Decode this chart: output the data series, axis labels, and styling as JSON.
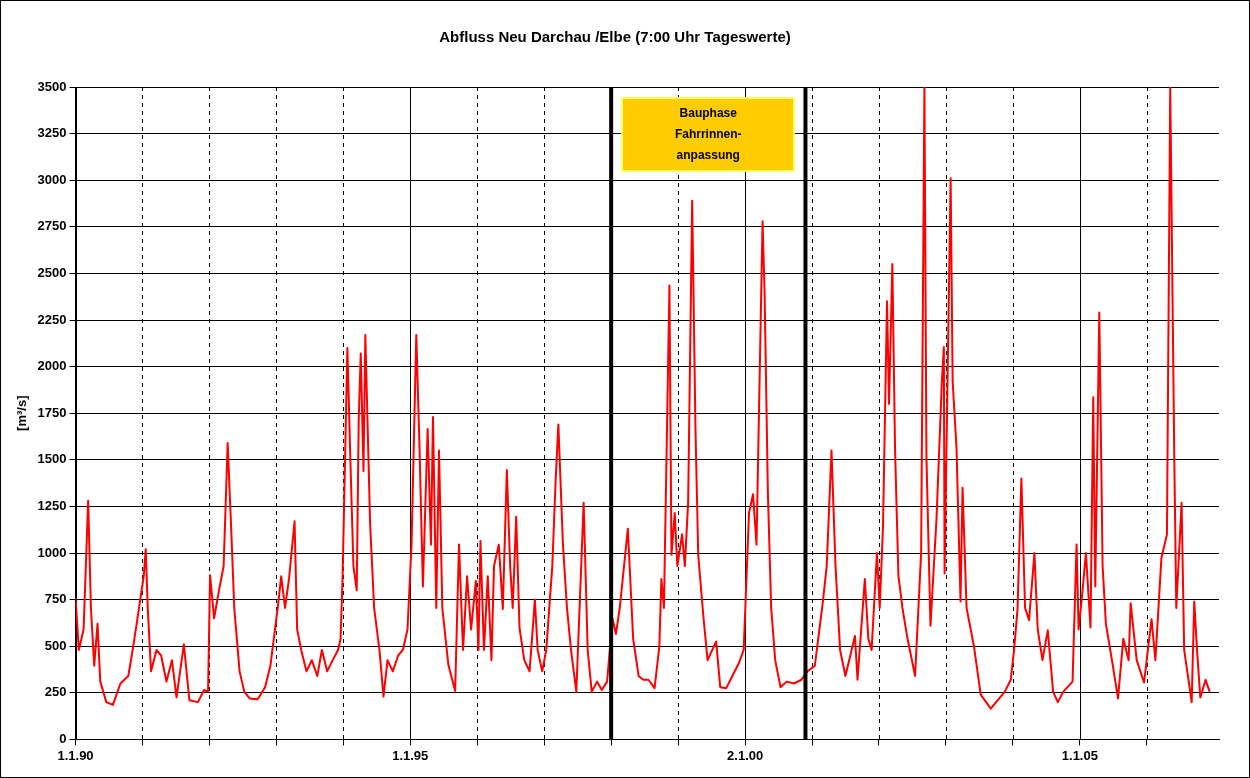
{
  "chart_data": {
    "type": "line",
    "title": "Abfluss Neu Darchau /Elbe (7:00 Uhr Tageswerte)",
    "ylabel": "[m³/s]",
    "x": [
      "1990-01-01",
      "1990-01-19",
      "1990-02-14",
      "1990-03-11",
      "1990-03-26",
      "1990-04-13",
      "1990-05-01",
      "1990-05-16",
      "1990-06-18",
      "1990-07-24",
      "1990-09-03",
      "1990-10-16",
      "1990-11-07",
      "1990-11-26",
      "1991-01-08",
      "1991-01-19",
      "1991-01-30",
      "1991-02-17",
      "1991-03-19",
      "1991-04-13",
      "1991-05-12",
      "1991-06-11",
      "1991-07-06",
      "1991-08-15",
      "1991-09-14",
      "1991-10-31",
      "1991-12-03",
      "1991-12-25",
      "1992-01-05",
      "1992-01-27",
      "1992-02-21",
      "1992-03-19",
      "1992-04-10",
      "1992-04-28",
      "1992-05-16",
      "1992-06-14",
      "1992-07-10",
      "1992-08-08",
      "1992-09-21",
      "1992-10-31",
      "1992-11-29",
      "1993-01-08",
      "1993-01-27",
      "1993-02-17",
      "1993-03-11",
      "1993-04-10",
      "1993-04-24",
      "1993-05-16",
      "1993-06-14",
      "1993-07-13",
      "1993-08-12",
      "1993-09-06",
      "1993-10-05",
      "1993-11-04",
      "1993-12-03",
      "1993-12-17",
      "1993-12-28",
      "1994-01-23",
      "1994-02-07",
      "1994-02-25",
      "1994-03-15",
      "1994-03-26",
      "1994-04-06",
      "1994-04-21",
      "1994-05-01",
      "1994-05-27",
      "1994-06-18",
      "1994-07-17",
      "1994-08-08",
      "1994-08-30",
      "1994-09-28",
      "1994-10-27",
      "1994-11-22",
      "1994-12-17",
      "1995-01-08",
      "1995-02-03",
      "1995-02-21",
      "1995-03-11",
      "1995-04-06",
      "1995-04-24",
      "1995-05-05",
      "1995-05-23",
      "1995-06-07",
      "1995-06-25",
      "1995-07-28",
      "1995-09-03",
      "1995-09-24",
      "1995-10-16",
      "1995-11-07",
      "1995-11-29",
      "1995-12-25",
      "1996-01-08",
      "1996-01-19",
      "1996-02-07",
      "1996-02-28",
      "1996-03-19",
      "1996-04-02",
      "1996-04-28",
      "1996-05-20",
      "1996-06-11",
      "1996-06-29",
      "1996-07-13",
      "1996-08-01",
      "1996-08-19",
      "1996-09-14",
      "1996-10-13",
      "1996-11-11",
      "1996-11-26",
      "1996-12-21",
      "1997-01-12",
      "1997-02-14",
      "1997-03-04",
      "1997-03-19",
      "1997-04-13",
      "1997-05-05",
      "1997-05-27",
      "1997-06-25",
      "1997-08-04",
      "1997-08-26",
      "1997-09-17",
      "1997-10-16",
      "1997-11-11",
      "1997-12-10",
      "1998-01-08",
      "1998-01-27",
      "1998-02-17",
      "1998-04-02",
      "1998-05-01",
      "1998-05-31",
      "1998-06-25",
      "1998-07-24",
      "1998-08-26",
      "1998-09-21",
      "1998-10-02",
      "1998-10-16",
      "1998-11-15",
      "1998-11-26",
      "1998-12-14",
      "1998-12-28",
      "1999-01-23",
      "1999-02-07",
      "1999-02-25",
      "1999-03-19",
      "1999-04-06",
      "1999-04-21",
      "1999-05-20",
      "1999-06-11",
      "1999-07-28",
      "1999-08-19",
      "1999-09-21",
      "1999-10-24",
      "1999-11-29",
      "1999-12-25",
      "2000-01-23",
      "2000-02-14",
      "2000-03-04",
      "2000-04-06",
      "2000-04-17",
      "2000-05-05",
      "2000-05-23",
      "2000-06-14",
      "2000-07-13",
      "2000-08-15",
      "2000-09-24",
      "2000-11-04",
      "2000-12-06",
      "2001-01-16",
      "2001-02-28",
      "2001-03-22",
      "2001-04-17",
      "2001-05-09",
      "2001-06-03",
      "2001-07-02",
      "2001-08-23",
      "2001-09-06",
      "2001-10-16",
      "2001-11-04",
      "2001-11-22",
      "2001-12-21",
      "2002-01-05",
      "2002-01-23",
      "2002-02-14",
      "2002-02-25",
      "2002-03-15",
      "2002-03-30",
      "2002-04-17",
      "2002-05-09",
      "2002-06-03",
      "2002-07-17",
      "2002-08-19",
      "2002-09-06",
      "2002-09-17",
      "2002-10-09",
      "2002-11-11",
      "2002-12-10",
      "2002-12-21",
      "2002-12-25",
      "2003-01-27",
      "2003-02-07",
      "2003-02-28",
      "2003-03-22",
      "2003-04-02",
      "2003-04-24",
      "2003-06-03",
      "2003-07-10",
      "2003-09-03",
      "2003-10-02",
      "2003-11-18",
      "2003-12-21",
      "2004-01-08",
      "2004-01-27",
      "2004-02-17",
      "2004-03-08",
      "2004-03-30",
      "2004-04-28",
      "2004-05-16",
      "2004-06-11",
      "2004-07-10",
      "2004-08-08",
      "2004-09-03",
      "2004-10-02",
      "2004-11-22",
      "2004-12-14",
      "2004-12-25",
      "2005-01-12",
      "2005-02-03",
      "2005-02-28",
      "2005-03-15",
      "2005-03-26",
      "2005-04-17",
      "2005-05-05",
      "2005-05-23",
      "2005-06-25",
      "2005-07-28",
      "2005-08-26",
      "2005-09-24",
      "2005-10-05",
      "2005-11-07",
      "2005-12-17",
      "2006-01-27",
      "2006-02-17",
      "2006-03-22",
      "2006-04-21",
      "2006-05-09",
      "2006-05-31",
      "2006-06-11",
      "2006-07-10",
      "2006-07-24",
      "2006-09-03",
      "2006-09-17",
      "2006-10-02",
      "2006-10-20",
      "2006-11-18",
      "2006-12-10"
    ],
    "series": [
      {
        "color": "#ff0000",
        "values": [
          760,
          480,
          590,
          1280,
          705,
          395,
          620,
          310,
          200,
          185,
          300,
          340,
          470,
          590,
          875,
          1020,
          705,
          365,
          480,
          450,
          310,
          425,
          225,
          510,
          210,
          200,
          265,
          255,
          880,
          650,
          790,
          930,
          1590,
          1160,
          705,
          365,
          255,
          220,
          215,
          280,
          395,
          705,
          875,
          705,
          865,
          1170,
          590,
          480,
          365,
          425,
          340,
          480,
          365,
          425,
          480,
          540,
          875,
          2100,
          1550,
          930,
          800,
          1720,
          2070,
          1440,
          2170,
          1160,
          705,
          480,
          230,
          425,
          365,
          450,
          480,
          590,
          1045,
          2170,
          1550,
          820,
          1665,
          1045,
          1730,
          705,
          1550,
          705,
          400,
          260,
          1045,
          480,
          875,
          590,
          850,
          480,
          1065,
          480,
          875,
          425,
          930,
          1045,
          700,
          1445,
          930,
          705,
          1195,
          600,
          425,
          365,
          750,
          480,
          365,
          480,
          930,
          1385,
          1690,
          1045,
          705,
          480,
          255,
          1270,
          480,
          255,
          310,
          265,
          310,
          650,
          565,
          705,
          1130,
          540,
          340,
          320,
          320,
          275,
          500,
          860,
          705,
          2435,
          990,
          1215,
          930,
          1100,
          930,
          1270,
          2890,
          1665,
          990,
          650,
          425,
          525,
          280,
          275,
          340,
          410,
          480,
          1215,
          1315,
          1045,
          2780,
          2400,
          1325,
          705,
          425,
          280,
          310,
          300,
          320,
          365,
          395,
          730,
          930,
          1550,
          930,
          480,
          340,
          555,
          320,
          860,
          540,
          480,
          1000,
          705,
          1140,
          2350,
          1800,
          2550,
          1550,
          880,
          705,
          555,
          340,
          1000,
          3500,
          1515,
          610,
          1185,
          1915,
          2105,
          890,
          3010,
          1920,
          1565,
          740,
          1350,
          705,
          500,
          240,
          165,
          200,
          255,
          320,
          480,
          700,
          1400,
          705,
          640,
          1000,
          590,
          425,
          585,
          255,
          200,
          255,
          310,
          1045,
          590,
          760,
          1000,
          600,
          1835,
          820,
          2290,
          930,
          620,
          425,
          220,
          540,
          425,
          730,
          425,
          305,
          645,
          425,
          975,
          1100,
          3500,
          1515,
          705,
          1270,
          480,
          200,
          740,
          480,
          225,
          320,
          255
        ]
      }
    ],
    "xlim": [
      "1990-01-01",
      "2007-01-30"
    ],
    "xticks": [
      {
        "value": "1990-01-01",
        "label": "1.1.90"
      },
      {
        "value": "1991-01-01",
        "label": null
      },
      {
        "value": "1992-01-01",
        "label": null
      },
      {
        "value": "1993-01-01",
        "label": null
      },
      {
        "value": "1994-01-01",
        "label": null
      },
      {
        "value": "1995-01-01",
        "label": "1.1.95"
      },
      {
        "value": "1996-01-01",
        "label": null
      },
      {
        "value": "1997-01-01",
        "label": null
      },
      {
        "value": "1998-01-01",
        "label": null
      },
      {
        "value": "1999-01-01",
        "label": null
      },
      {
        "value": "2000-01-02",
        "label": "2.1.00"
      },
      {
        "value": "2001-01-01",
        "label": null
      },
      {
        "value": "2002-01-01",
        "label": null
      },
      {
        "value": "2003-01-01",
        "label": null
      },
      {
        "value": "2004-01-01",
        "label": null
      },
      {
        "value": "2005-01-01",
        "label": "1.1.05"
      },
      {
        "value": "2006-01-01",
        "label": null
      }
    ],
    "ylim": [
      0,
      3500
    ],
    "yticks": [
      0,
      250,
      500,
      750,
      1000,
      1250,
      1500,
      1750,
      2000,
      2250,
      2500,
      2750,
      3000,
      3250,
      3500
    ],
    "grid": true,
    "legend": false,
    "marker": "none",
    "line_style": "solid",
    "ref_lines": [
      {
        "axis": "x",
        "value": "1998-01-01",
        "color": "#000000"
      },
      {
        "axis": "x",
        "value": "2000-11-26",
        "color": "#000000"
      }
    ],
    "annotations": [
      "Bauphase Fahrrinnen-anpassung"
    ]
  }
}
